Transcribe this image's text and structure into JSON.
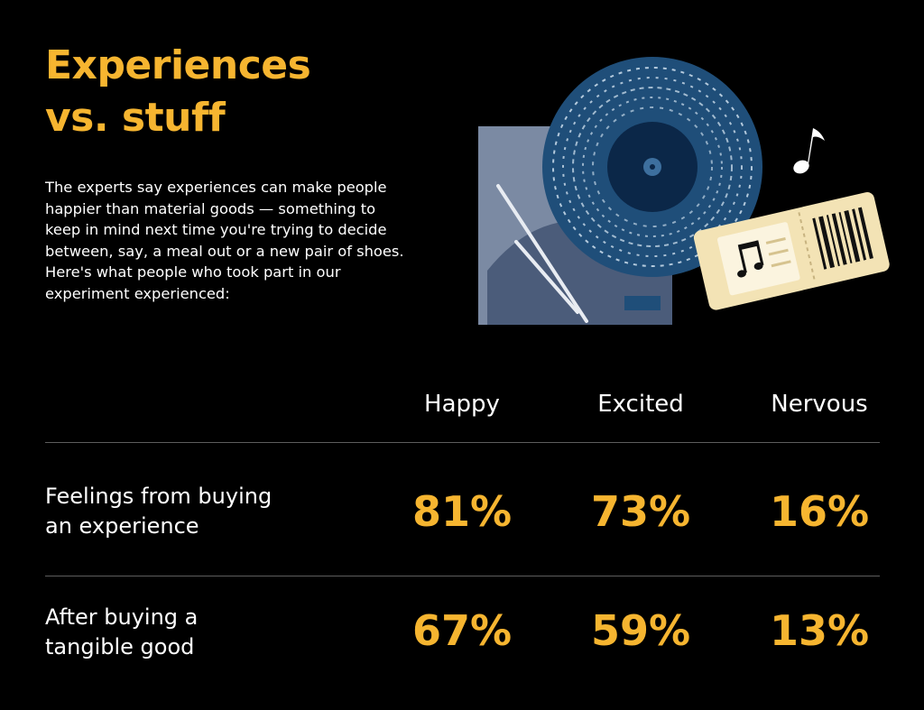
{
  "title": {
    "line1": "Experiences",
    "line2": "vs. stuff"
  },
  "intro": "The experts say experiences can make people happier than material goods — something to keep in mind next time you're trying to decide between, say, a meal out or a new pair of shoes. Here's what people who took part in our experiment experienced:",
  "illustration": {
    "icons": [
      "vinyl-record-icon",
      "album-sleeve-icon",
      "music-note-icon",
      "concert-ticket-icon"
    ]
  },
  "colors": {
    "background": "#000000",
    "accent": "#f6b530",
    "text": "#ffffff",
    "divider": "#5d5d5d",
    "record": "#1f4e79",
    "sleeve": "#7b8aa3",
    "ticket": "#f3e3b5"
  },
  "chart_data": {
    "type": "table",
    "columns": [
      "Happy",
      "Excited",
      "Nervous"
    ],
    "rows": [
      {
        "label": [
          "Feelings from buying",
          "an experience"
        ],
        "values": [
          "81%",
          "73%",
          "16%"
        ]
      },
      {
        "label": [
          "After buying a",
          "tangible good"
        ],
        "values": [
          "67%",
          "59%",
          "13%"
        ]
      }
    ]
  }
}
